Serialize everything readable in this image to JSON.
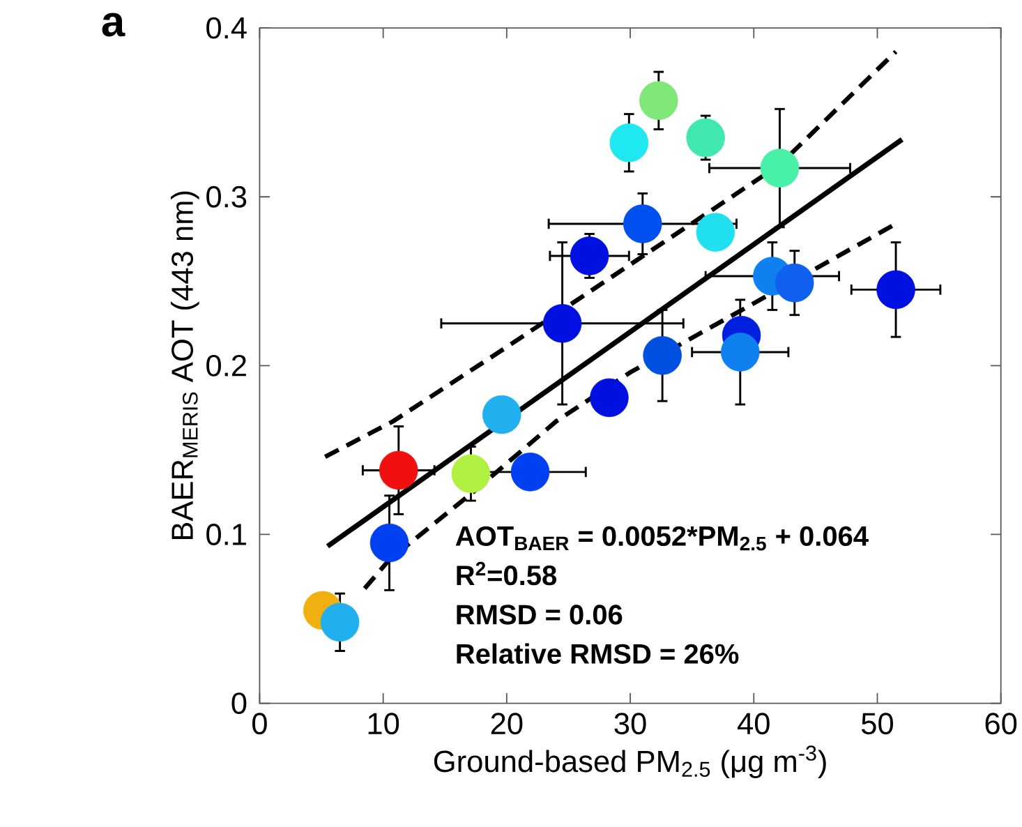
{
  "chart_data": {
    "type": "scatter",
    "title": "a",
    "xlabel": "Ground-based PM$_{2.5}$ (μg m$^{-3}$)",
    "ylabel": "BAER$_{MERIS}$ AOT (443 nm)",
    "xlim": [
      0,
      60
    ],
    "ylim": [
      0,
      0.4
    ],
    "xticks": [
      0,
      10,
      20,
      30,
      40,
      50,
      60
    ],
    "yticks": [
      0,
      0.1,
      0.2,
      0.3,
      0.4
    ],
    "annotations": [
      "AOT$_{BAER}$ = 0.0052*PM$_{2.5}$ + 0.064",
      "R$^{2}$=0.58",
      "RMSD = 0.06",
      "Relative RMSD = 26%"
    ],
    "series": [
      {
        "type": "scatter",
        "marker": "circle",
        "x": [
          32.3,
          29.9,
          36.1,
          42.1,
          31.0,
          36.9,
          26.7,
          41.5,
          43.3,
          51.5,
          24.5,
          32.6,
          39.0,
          38.9,
          28.3,
          19.6,
          11.25,
          17.1,
          21.9,
          10.5,
          5.1,
          6.5
        ],
        "values": [
          0.357,
          0.332,
          0.335,
          0.317,
          0.284,
          0.279,
          0.265,
          0.253,
          0.249,
          0.245,
          0.225,
          0.206,
          0.218,
          0.208,
          0.181,
          0.171,
          0.138,
          0.136,
          0.137,
          0.095,
          0.055,
          0.048
        ],
        "errors": [
          0.017,
          0.017,
          0.013,
          0.035,
          0.018,
          null,
          0.013,
          0.02,
          0.019,
          0.028,
          0.048,
          0.027,
          null,
          0.031,
          null,
          null,
          0.026,
          0.016,
          null,
          0.028,
          null,
          0.017
        ],
        "xerrors": [
          null,
          null,
          null,
          5.7,
          7.6,
          null,
          3.2,
          5.4,
          null,
          3.6,
          9.8,
          null,
          null,
          3.9,
          null,
          null,
          2.9,
          null,
          4.5,
          null,
          null,
          null
        ],
        "colors": [
          "#80e878",
          "#20e8f0",
          "#40e8b0",
          "#48f0a8",
          "#0050f0",
          "#20e0f0",
          "#0010e0",
          "#1080f0",
          "#1060f0",
          "#0010e0",
          "#0010e0",
          "#0050e0",
          "#0020e0",
          "#1080f0",
          "#0010e0",
          "#20b0f0",
          "#f01010",
          "#b0f040",
          "#0040f0",
          "#0040f0",
          "#f0b010",
          "#20b0f0"
        ]
      },
      {
        "type": "line",
        "color": "#000000",
        "line_style": "solid",
        "marker": "none",
        "x": [
          5.5,
          52
        ],
        "values": [
          0.093,
          0.334
        ]
      },
      {
        "type": "line",
        "color": "#000000",
        "line_style": "dashed",
        "marker": "none",
        "x": [
          5.3,
          10.8,
          20.0,
          42.1,
          51.5
        ],
        "values": [
          0.146,
          0.167,
          0.211,
          0.319,
          0.386
        ]
      },
      {
        "type": "line",
        "color": "#000000",
        "line_style": "dashed",
        "marker": "none",
        "x": [
          8.5,
          10.5,
          17.1,
          24.0,
          30.0,
          51.5
        ],
        "values": [
          0.068,
          0.085,
          0.124,
          0.167,
          0.196,
          0.284
        ]
      }
    ]
  }
}
